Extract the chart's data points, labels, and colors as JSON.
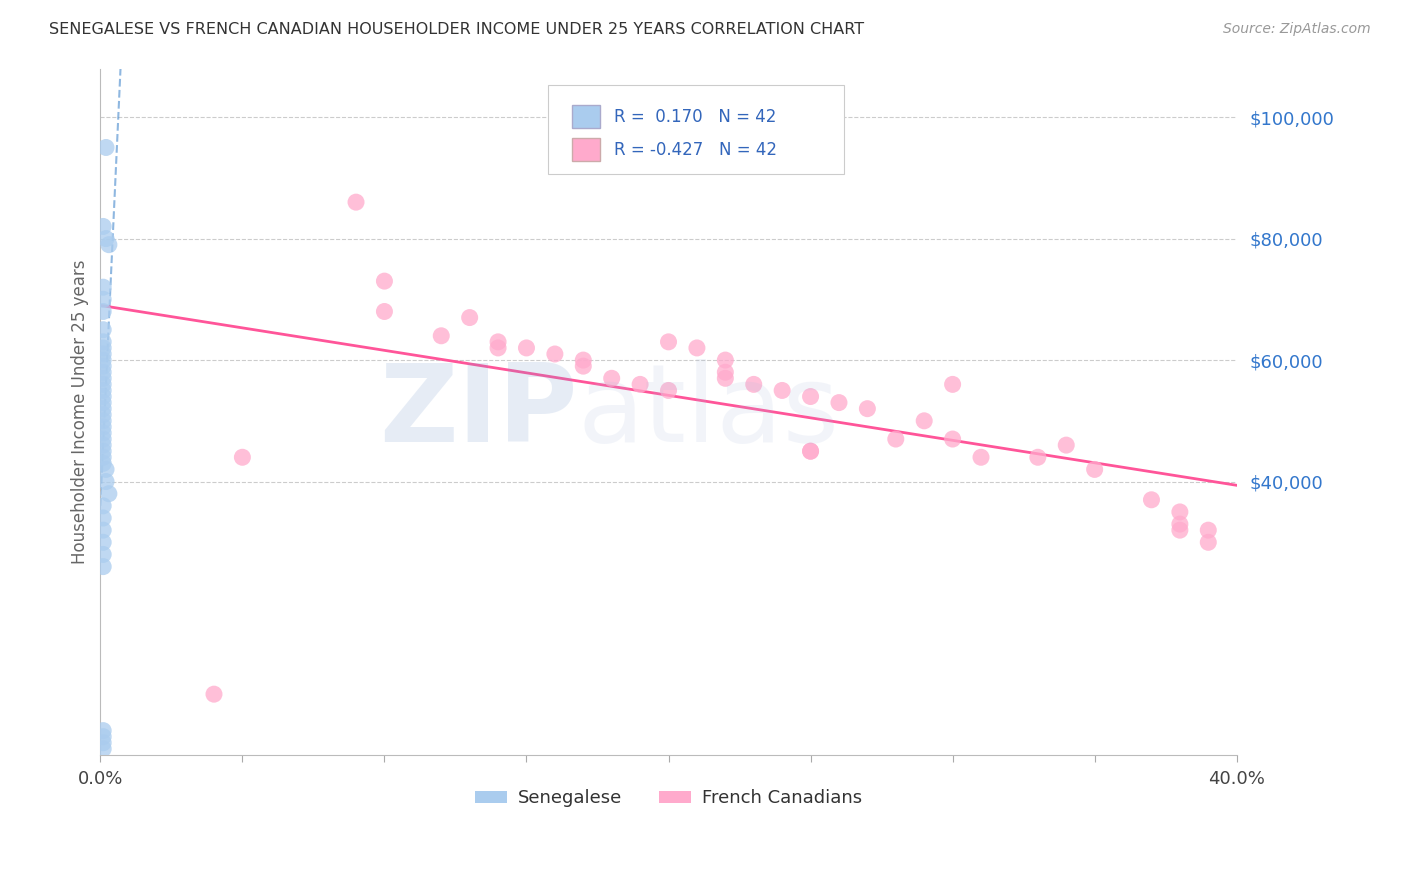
{
  "title": "SENEGALESE VS FRENCH CANADIAN HOUSEHOLDER INCOME UNDER 25 YEARS CORRELATION CHART",
  "source": "Source: ZipAtlas.com",
  "ylabel": "Householder Income Under 25 years",
  "legend_label_blue": "Senegalese",
  "legend_label_pink": "French Canadians",
  "blue_color": "#aaccee",
  "pink_color": "#ffaacc",
  "blue_line_color": "#4488cc",
  "pink_line_color": "#ff5599",
  "watermark_zip_color": "#7799cc",
  "watermark_atlas_color": "#aabbdd",
  "ylabel_right_ticks": [
    "$100,000",
    "$80,000",
    "$60,000",
    "$40,000"
  ],
  "ylabel_right_values": [
    100000,
    80000,
    60000,
    40000
  ],
  "xlim": [
    0.0,
    0.4
  ],
  "ylim": [
    -5000,
    108000
  ],
  "grid_color": "#cccccc",
  "bg_color": "#ffffff",
  "title_color": "#333333",
  "source_color": "#999999",
  "legend_r_blue": "R =  0.170   N = 42",
  "legend_r_pink": "R = -0.427   N = 42",
  "sen_x": [
    0.002,
    0.001,
    0.002,
    0.003,
    0.001,
    0.001,
    0.001,
    0.001,
    0.001,
    0.001,
    0.001,
    0.001,
    0.001,
    0.001,
    0.001,
    0.001,
    0.001,
    0.001,
    0.001,
    0.001,
    0.001,
    0.001,
    0.001,
    0.001,
    0.001,
    0.001,
    0.001,
    0.001,
    0.001,
    0.002,
    0.002,
    0.003,
    0.001,
    0.001,
    0.001,
    0.001,
    0.001,
    0.001,
    0.001,
    0.001,
    0.001,
    0.001
  ],
  "sen_y": [
    95000,
    82000,
    80000,
    79000,
    72000,
    70000,
    68000,
    65000,
    63000,
    62000,
    61000,
    60000,
    59000,
    58000,
    57000,
    56000,
    55000,
    54000,
    53000,
    52000,
    51000,
    50000,
    49000,
    48000,
    47000,
    46000,
    45000,
    44000,
    43000,
    42000,
    40000,
    38000,
    36000,
    34000,
    32000,
    30000,
    28000,
    26000,
    -1000,
    -2000,
    -3000,
    -4000
  ],
  "fc_x": [
    0.05,
    0.1,
    0.1,
    0.12,
    0.14,
    0.14,
    0.15,
    0.16,
    0.17,
    0.17,
    0.18,
    0.19,
    0.2,
    0.21,
    0.22,
    0.22,
    0.23,
    0.24,
    0.25,
    0.26,
    0.27,
    0.28,
    0.29,
    0.3,
    0.3,
    0.31,
    0.33,
    0.34,
    0.35,
    0.37,
    0.38,
    0.38,
    0.39,
    0.39,
    0.25,
    0.2,
    0.13,
    0.09,
    0.22,
    0.25,
    0.38,
    0.04
  ],
  "fc_y": [
    44000,
    73000,
    68000,
    64000,
    63000,
    62000,
    62000,
    61000,
    60000,
    59000,
    57000,
    56000,
    55000,
    62000,
    58000,
    57000,
    56000,
    55000,
    54000,
    53000,
    52000,
    47000,
    50000,
    47000,
    56000,
    44000,
    44000,
    46000,
    42000,
    37000,
    35000,
    32000,
    32000,
    30000,
    45000,
    63000,
    67000,
    86000,
    60000,
    45000,
    33000,
    5000
  ]
}
